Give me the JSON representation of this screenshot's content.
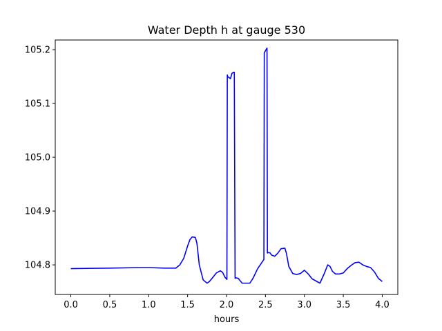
{
  "chart_data": {
    "type": "line",
    "title": "Water Depth h at gauge 530",
    "xlabel": "hours",
    "ylabel": "",
    "xlim": [
      -0.2,
      4.2
    ],
    "ylim": [
      104.745,
      105.218
    ],
    "xticks": [
      0.0,
      0.5,
      1.0,
      1.5,
      2.0,
      2.5,
      3.0,
      3.5,
      4.0
    ],
    "xtick_labels": [
      "0.0",
      "0.5",
      "1.0",
      "1.5",
      "2.0",
      "2.5",
      "3.0",
      "3.5",
      "4.0"
    ],
    "yticks": [
      104.8,
      104.9,
      105.0,
      105.1,
      105.2
    ],
    "ytick_labels": [
      "104.8",
      "104.9",
      "105.0",
      "105.1",
      "105.2"
    ],
    "grid": false,
    "series": [
      {
        "color": "#0000ff",
        "x": [
          0.0,
          0.5,
          0.9,
          1.0,
          1.2,
          1.35,
          1.4,
          1.45,
          1.5,
          1.53,
          1.56,
          1.6,
          1.62,
          1.65,
          1.7,
          1.75,
          1.78,
          1.82,
          1.87,
          1.92,
          1.95,
          1.98,
          2.005,
          2.01,
          2.015,
          2.05,
          2.07,
          2.09,
          2.1,
          2.11,
          2.12,
          2.15,
          2.2,
          2.3,
          2.34,
          2.4,
          2.48,
          2.485,
          2.5,
          2.52,
          2.525,
          2.54,
          2.56,
          2.58,
          2.62,
          2.66,
          2.7,
          2.75,
          2.77,
          2.8,
          2.85,
          2.9,
          2.95,
          3.0,
          3.05,
          3.1,
          3.15,
          3.2,
          3.25,
          3.3,
          3.33,
          3.36,
          3.4,
          3.45,
          3.5,
          3.55,
          3.6,
          3.65,
          3.7,
          3.75,
          3.8,
          3.85,
          3.9,
          3.95,
          4.0
        ],
        "y": [
          104.793,
          104.794,
          104.795,
          104.795,
          104.794,
          104.794,
          104.8,
          104.812,
          104.835,
          104.847,
          104.852,
          104.851,
          104.84,
          104.8,
          104.772,
          104.766,
          104.769,
          104.776,
          104.785,
          104.789,
          104.786,
          104.777,
          104.773,
          105.153,
          105.15,
          105.146,
          105.156,
          105.158,
          105.158,
          104.775,
          104.776,
          104.775,
          104.766,
          104.766,
          104.775,
          104.793,
          104.81,
          105.194,
          105.198,
          105.203,
          104.822,
          104.823,
          104.822,
          104.818,
          104.816,
          104.822,
          104.83,
          104.831,
          104.821,
          104.797,
          104.784,
          104.782,
          104.784,
          104.79,
          104.783,
          104.774,
          104.77,
          104.766,
          104.782,
          104.8,
          104.797,
          104.788,
          104.783,
          104.783,
          104.785,
          104.793,
          104.799,
          104.804,
          104.805,
          104.8,
          104.797,
          104.795,
          104.787,
          104.775,
          104.769
        ]
      }
    ]
  }
}
